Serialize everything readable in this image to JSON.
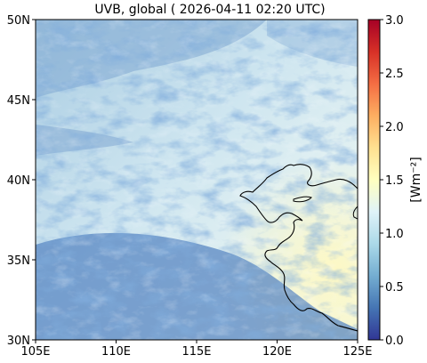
{
  "title": "UVB, global ( 2026-04-11 02:20 UTC)",
  "map": {
    "lon_range": [
      105,
      125
    ],
    "lat_range": [
      30,
      50
    ],
    "x_ticks": [
      {
        "value": 105,
        "label": "105E"
      },
      {
        "value": 110,
        "label": "110E"
      },
      {
        "value": 115,
        "label": "115E"
      },
      {
        "value": 120,
        "label": "120E"
      },
      {
        "value": 125,
        "label": "125E"
      }
    ],
    "y_ticks": [
      {
        "value": 30,
        "label": "30N"
      },
      {
        "value": 35,
        "label": "35N"
      },
      {
        "value": 40,
        "label": "40N"
      },
      {
        "value": 45,
        "label": "45N"
      },
      {
        "value": 50,
        "label": "50N"
      }
    ]
  },
  "colorbar": {
    "label": "[Wm⁻²]",
    "range": [
      0.0,
      3.0
    ],
    "colormap": "RdYlBu_r",
    "ticks": [
      {
        "value": 0.0,
        "label": "0.0"
      },
      {
        "value": 0.5,
        "label": "0.5"
      },
      {
        "value": 1.0,
        "label": "1.0"
      },
      {
        "value": 1.5,
        "label": "1.5"
      },
      {
        "value": 2.0,
        "label": "2.0"
      },
      {
        "value": 2.5,
        "label": "2.5"
      },
      {
        "value": 3.0,
        "label": "3.0"
      }
    ]
  },
  "colors": {
    "low": "#313695",
    "mid": "#e0f3f8",
    "high": "#a50026",
    "coastline": "#000000"
  }
}
